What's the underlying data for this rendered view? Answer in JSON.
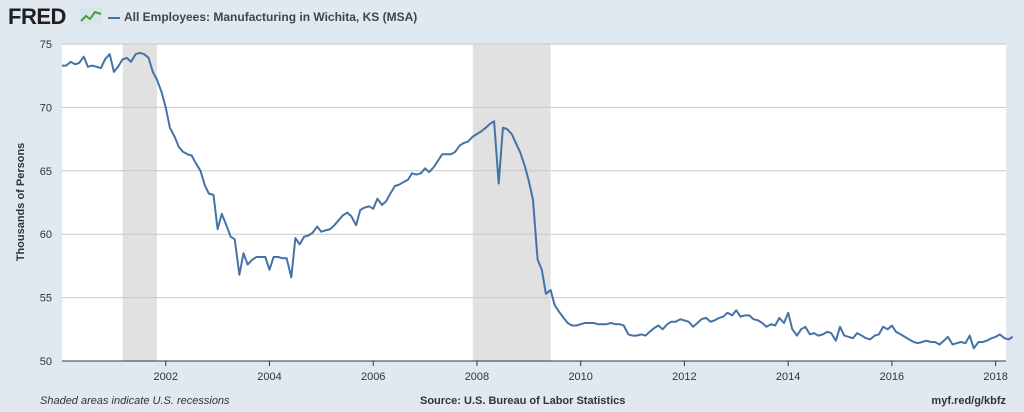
{
  "brand": {
    "logo_text": "FRED",
    "logo_icon": "line-chart-icon"
  },
  "chart_data": {
    "type": "line",
    "title": "All Employees: Manufacturing in Wichita, KS (MSA)",
    "xlabel": "",
    "ylabel": "Thousands of Persons",
    "xlim": [
      2000.0,
      2018.2
    ],
    "ylim": [
      50,
      75
    ],
    "yticks": [
      50,
      55,
      60,
      65,
      70,
      75
    ],
    "xticks": [
      "2002",
      "2004",
      "2006",
      "2008",
      "2010",
      "2012",
      "2014",
      "2016",
      "2018"
    ],
    "grid": true,
    "recessions": [
      [
        2001.17,
        2001.83
      ],
      [
        2007.92,
        2009.42
      ]
    ],
    "series": [
      {
        "color": "#4572a7",
        "points": [
          [
            2000.0,
            73.3
          ],
          [
            2000.08,
            73.3
          ],
          [
            2000.17,
            73.6
          ],
          [
            2000.25,
            73.4
          ],
          [
            2000.33,
            73.5
          ],
          [
            2000.42,
            74.0
          ],
          [
            2000.5,
            73.2
          ],
          [
            2000.58,
            73.3
          ],
          [
            2000.67,
            73.2
          ],
          [
            2000.75,
            73.1
          ],
          [
            2000.83,
            73.8
          ],
          [
            2000.92,
            74.2
          ],
          [
            2001.0,
            72.8
          ],
          [
            2001.08,
            73.2
          ],
          [
            2001.17,
            73.8
          ],
          [
            2001.25,
            73.9
          ],
          [
            2001.33,
            73.6
          ],
          [
            2001.42,
            74.2
          ],
          [
            2001.5,
            74.3
          ],
          [
            2001.58,
            74.2
          ],
          [
            2001.67,
            73.9
          ],
          [
            2001.75,
            72.8
          ],
          [
            2001.83,
            72.2
          ],
          [
            2001.92,
            71.2
          ],
          [
            2002.0,
            70.0
          ],
          [
            2002.08,
            68.4
          ],
          [
            2002.17,
            67.7
          ],
          [
            2002.25,
            66.9
          ],
          [
            2002.33,
            66.5
          ],
          [
            2002.42,
            66.3
          ],
          [
            2002.5,
            66.2
          ],
          [
            2002.58,
            65.6
          ],
          [
            2002.67,
            65.0
          ],
          [
            2002.75,
            63.9
          ],
          [
            2002.83,
            63.2
          ],
          [
            2002.92,
            63.1
          ],
          [
            2003.0,
            60.4
          ],
          [
            2003.08,
            61.6
          ],
          [
            2003.17,
            60.7
          ],
          [
            2003.25,
            59.8
          ],
          [
            2003.33,
            59.6
          ],
          [
            2003.42,
            56.8
          ],
          [
            2003.5,
            58.5
          ],
          [
            2003.58,
            57.6
          ],
          [
            2003.67,
            58.0
          ],
          [
            2003.75,
            58.2
          ],
          [
            2003.83,
            58.2
          ],
          [
            2003.92,
            58.2
          ],
          [
            2004.0,
            57.2
          ],
          [
            2004.08,
            58.2
          ],
          [
            2004.17,
            58.2
          ],
          [
            2004.25,
            58.1
          ],
          [
            2004.33,
            58.1
          ],
          [
            2004.42,
            56.6
          ],
          [
            2004.5,
            59.7
          ],
          [
            2004.58,
            59.2
          ],
          [
            2004.67,
            59.8
          ],
          [
            2004.75,
            59.9
          ],
          [
            2004.83,
            60.1
          ],
          [
            2004.92,
            60.6
          ],
          [
            2005.0,
            60.2
          ],
          [
            2005.08,
            60.3
          ],
          [
            2005.17,
            60.4
          ],
          [
            2005.25,
            60.7
          ],
          [
            2005.33,
            61.1
          ],
          [
            2005.42,
            61.5
          ],
          [
            2005.5,
            61.7
          ],
          [
            2005.58,
            61.4
          ],
          [
            2005.67,
            60.7
          ],
          [
            2005.75,
            61.9
          ],
          [
            2005.83,
            62.1
          ],
          [
            2005.92,
            62.2
          ],
          [
            2006.0,
            62.0
          ],
          [
            2006.08,
            62.8
          ],
          [
            2006.17,
            62.3
          ],
          [
            2006.25,
            62.6
          ],
          [
            2006.33,
            63.2
          ],
          [
            2006.42,
            63.8
          ],
          [
            2006.5,
            63.9
          ],
          [
            2006.58,
            64.1
          ],
          [
            2006.67,
            64.3
          ],
          [
            2006.75,
            64.8
          ],
          [
            2006.83,
            64.7
          ],
          [
            2006.92,
            64.8
          ],
          [
            2007.0,
            65.2
          ],
          [
            2007.08,
            64.9
          ],
          [
            2007.17,
            65.3
          ],
          [
            2007.25,
            65.8
          ],
          [
            2007.33,
            66.3
          ],
          [
            2007.42,
            66.3
          ],
          [
            2007.5,
            66.3
          ],
          [
            2007.58,
            66.5
          ],
          [
            2007.67,
            67.0
          ],
          [
            2007.75,
            67.2
          ],
          [
            2007.83,
            67.3
          ],
          [
            2007.92,
            67.7
          ],
          [
            2008.0,
            67.9
          ],
          [
            2008.08,
            68.1
          ],
          [
            2008.17,
            68.4
          ],
          [
            2008.25,
            68.7
          ],
          [
            2008.33,
            68.9
          ],
          [
            2008.42,
            64.0
          ],
          [
            2008.5,
            68.4
          ],
          [
            2008.58,
            68.3
          ],
          [
            2008.67,
            67.9
          ],
          [
            2008.75,
            67.2
          ],
          [
            2008.83,
            66.5
          ],
          [
            2008.92,
            65.4
          ],
          [
            2009.0,
            64.2
          ],
          [
            2009.08,
            62.7
          ],
          [
            2009.17,
            58.0
          ],
          [
            2009.25,
            57.2
          ],
          [
            2009.33,
            55.3
          ],
          [
            2009.42,
            55.6
          ],
          [
            2009.5,
            54.4
          ],
          [
            2009.58,
            53.9
          ],
          [
            2009.67,
            53.4
          ],
          [
            2009.75,
            53.0
          ],
          [
            2009.83,
            52.8
          ],
          [
            2009.92,
            52.8
          ],
          [
            2010.0,
            52.9
          ],
          [
            2010.08,
            53.0
          ],
          [
            2010.17,
            53.0
          ],
          [
            2010.25,
            53.0
          ],
          [
            2010.33,
            52.9
          ],
          [
            2010.42,
            52.9
          ],
          [
            2010.5,
            52.9
          ],
          [
            2010.58,
            53.0
          ],
          [
            2010.67,
            52.9
          ],
          [
            2010.75,
            52.9
          ],
          [
            2010.83,
            52.8
          ],
          [
            2010.92,
            52.1
          ],
          [
            2011.0,
            52.0
          ],
          [
            2011.08,
            52.0
          ],
          [
            2011.17,
            52.1
          ],
          [
            2011.25,
            52.0
          ],
          [
            2011.33,
            52.3
          ],
          [
            2011.42,
            52.6
          ],
          [
            2011.5,
            52.8
          ],
          [
            2011.58,
            52.5
          ],
          [
            2011.67,
            52.9
          ],
          [
            2011.75,
            53.1
          ],
          [
            2011.83,
            53.1
          ],
          [
            2011.92,
            53.3
          ],
          [
            2012.0,
            53.2
          ],
          [
            2012.08,
            53.1
          ],
          [
            2012.17,
            52.7
          ],
          [
            2012.25,
            53.0
          ],
          [
            2012.33,
            53.3
          ],
          [
            2012.42,
            53.4
          ],
          [
            2012.5,
            53.1
          ],
          [
            2012.58,
            53.2
          ],
          [
            2012.67,
            53.4
          ],
          [
            2012.75,
            53.5
          ],
          [
            2012.83,
            53.8
          ],
          [
            2012.92,
            53.6
          ],
          [
            2013.0,
            54.0
          ],
          [
            2013.08,
            53.5
          ],
          [
            2013.17,
            53.6
          ],
          [
            2013.25,
            53.6
          ],
          [
            2013.33,
            53.3
          ],
          [
            2013.42,
            53.2
          ],
          [
            2013.5,
            53.0
          ],
          [
            2013.58,
            52.7
          ],
          [
            2013.67,
            52.9
          ],
          [
            2013.75,
            52.8
          ],
          [
            2013.83,
            53.4
          ],
          [
            2013.92,
            53.0
          ],
          [
            2014.0,
            53.8
          ],
          [
            2014.08,
            52.5
          ],
          [
            2014.17,
            52.0
          ],
          [
            2014.25,
            52.5
          ],
          [
            2014.33,
            52.7
          ],
          [
            2014.42,
            52.1
          ],
          [
            2014.5,
            52.2
          ],
          [
            2014.58,
            52.0
          ],
          [
            2014.67,
            52.1
          ],
          [
            2014.75,
            52.3
          ],
          [
            2014.83,
            52.2
          ],
          [
            2014.92,
            51.6
          ],
          [
            2015.0,
            52.7
          ],
          [
            2015.08,
            52.0
          ],
          [
            2015.17,
            51.9
          ],
          [
            2015.25,
            51.8
          ],
          [
            2015.33,
            52.2
          ],
          [
            2015.42,
            52.0
          ],
          [
            2015.5,
            51.8
          ],
          [
            2015.58,
            51.7
          ],
          [
            2015.67,
            52.0
          ],
          [
            2015.75,
            52.1
          ],
          [
            2015.83,
            52.7
          ],
          [
            2015.92,
            52.5
          ],
          [
            2016.0,
            52.8
          ],
          [
            2016.08,
            52.3
          ],
          [
            2016.17,
            52.1
          ],
          [
            2016.25,
            51.9
          ],
          [
            2016.33,
            51.7
          ],
          [
            2016.42,
            51.5
          ],
          [
            2016.5,
            51.4
          ],
          [
            2016.58,
            51.5
          ],
          [
            2016.67,
            51.6
          ],
          [
            2016.75,
            51.5
          ],
          [
            2016.83,
            51.5
          ],
          [
            2016.92,
            51.3
          ],
          [
            2017.0,
            51.6
          ],
          [
            2017.08,
            51.9
          ],
          [
            2017.17,
            51.3
          ],
          [
            2017.25,
            51.4
          ],
          [
            2017.33,
            51.5
          ],
          [
            2017.42,
            51.4
          ],
          [
            2017.5,
            52.0
          ],
          [
            2017.58,
            51.0
          ],
          [
            2017.67,
            51.5
          ],
          [
            2017.75,
            51.5
          ],
          [
            2017.83,
            51.6
          ],
          [
            2017.92,
            51.8
          ],
          [
            2018.0,
            51.9
          ],
          [
            2018.08,
            52.1
          ],
          [
            2018.17,
            51.8
          ],
          [
            2018.25,
            51.7
          ],
          [
            2018.33,
            51.9
          ]
        ]
      }
    ]
  },
  "footer": {
    "note": "Shaded areas indicate U.S. recessions",
    "source": "Source: U.S. Bureau of Labor Statistics",
    "link": "myf.red/g/kbfz"
  }
}
